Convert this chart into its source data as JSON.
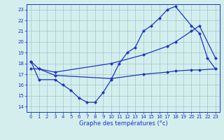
{
  "line1_x": [
    0,
    1,
    3,
    4,
    5,
    6,
    7,
    8,
    9,
    10,
    11,
    12,
    13,
    14,
    15,
    16,
    17,
    18,
    20,
    21,
    22,
    23
  ],
  "line1_y": [
    18.2,
    16.5,
    16.5,
    16.0,
    15.5,
    14.8,
    14.4,
    14.4,
    15.3,
    16.5,
    18.0,
    19.0,
    19.5,
    21.0,
    21.5,
    22.2,
    23.0,
    23.3,
    21.5,
    20.8,
    18.5,
    17.5
  ],
  "line2_x": [
    0,
    1,
    3,
    10,
    14,
    17,
    18,
    20,
    21,
    23
  ],
  "line2_y": [
    18.2,
    17.5,
    17.2,
    18.0,
    18.8,
    19.6,
    20.0,
    21.0,
    21.5,
    18.5
  ],
  "line3_x": [
    0,
    1,
    3,
    10,
    14,
    17,
    18,
    20,
    21,
    23
  ],
  "line3_y": [
    17.5,
    17.5,
    16.9,
    16.6,
    17.0,
    17.2,
    17.3,
    17.4,
    17.4,
    17.5
  ],
  "line_color": "#1a35c8",
  "bg_color": "#d4eeee",
  "grid_color": "#a0c8c8",
  "xlabel": "Graphe des températures (°c)",
  "ylim": [
    13.5,
    23.5
  ],
  "xlim": [
    -0.5,
    23.5
  ],
  "yticks": [
    14,
    15,
    16,
    17,
    18,
    19,
    20,
    21,
    22,
    23
  ],
  "xticks": [
    0,
    1,
    2,
    3,
    4,
    5,
    6,
    7,
    8,
    9,
    10,
    11,
    12,
    13,
    14,
    15,
    16,
    17,
    18,
    19,
    20,
    21,
    22,
    23
  ]
}
